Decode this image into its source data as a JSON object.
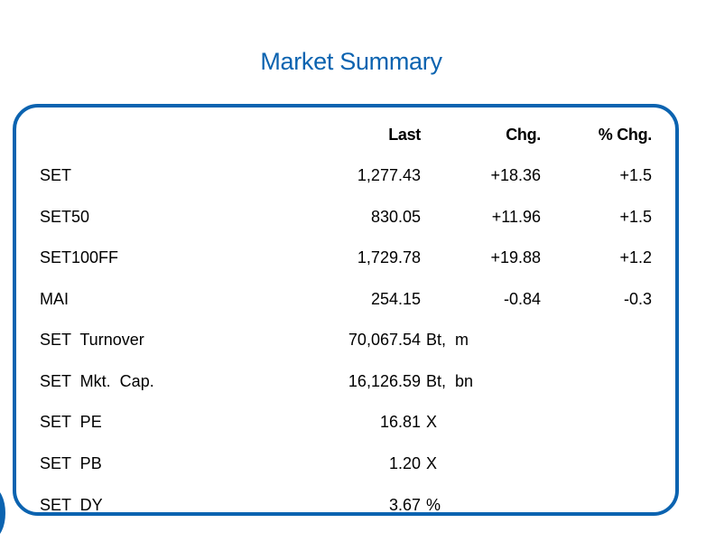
{
  "title": "Market Summary",
  "headers": {
    "last": "Last",
    "chg": "Chg.",
    "pct_chg": "% Chg."
  },
  "indices": [
    {
      "name": "SET",
      "last": "1,277.43",
      "chg": "+18.36",
      "pct_chg": "+1.5"
    },
    {
      "name": "SET50",
      "last": "830.05",
      "chg": "+11.96",
      "pct_chg": "+1.5"
    },
    {
      "name": "SET100FF",
      "last": "1,729.78",
      "chg": "+19.88",
      "pct_chg": "+1.2"
    },
    {
      "name": "MAI",
      "last": "254.15",
      "chg": "-0.84",
      "pct_chg": "-0.3"
    }
  ],
  "stats": [
    {
      "name": "SET  Turnover",
      "value": "70,067.54",
      "unit": "Bt,  m"
    },
    {
      "name": "SET  Mkt.  Cap.",
      "value": "16,126.59",
      "unit": "Bt,  bn"
    },
    {
      "name": "SET  PE",
      "value": "16.81",
      "unit": "X"
    },
    {
      "name": "SET  PB",
      "value": "1.20",
      "unit": "X"
    },
    {
      "name": "SET  DY",
      "value": "3.67",
      "unit": "%"
    }
  ],
  "colors": {
    "accent": "#0b63b0",
    "text": "#000000",
    "background": "#ffffff"
  }
}
